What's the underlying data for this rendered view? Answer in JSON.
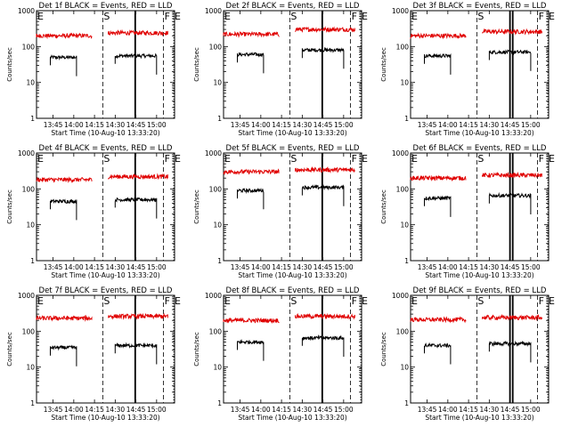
{
  "page": {
    "background": "#ffffff",
    "foreground": "#000000"
  },
  "colors": {
    "events": "#000000",
    "lld": "#e00000"
  },
  "shared": {
    "ylabel": "Counts/sec",
    "xlabel": "Start Time (10-Aug-10 13:33:20)",
    "ylim": [
      1,
      1000
    ],
    "yscale": "log",
    "ytick_labels": [
      "1",
      "10",
      "100",
      "1000"
    ],
    "xlim_minutes": [
      0,
      100
    ],
    "markers": [
      {
        "label": "E",
        "t": 0,
        "style": "dotted"
      },
      {
        "label": "S",
        "t": 48,
        "style": "dashed"
      },
      {
        "label": "F",
        "t": 92,
        "style": "dashed"
      },
      {
        "label": "E",
        "t": 102,
        "style": "dotted"
      }
    ]
  },
  "chart_data": [
    {
      "type": "line",
      "title": "Det 1f BLACK = Events, RED = LLD",
      "x_tick_labels": [
        "13:45",
        "14:00",
        "14:15",
        "14:30",
        "14:45",
        "15:00"
      ],
      "x_ticks_at": [
        12,
        27,
        42,
        57,
        72,
        87
      ],
      "solid_lines_at": [
        71.5
      ],
      "series": [
        {
          "name": "Events",
          "segments": [
            {
              "x0": 10,
              "x1": 29,
              "y": 50
            },
            {
              "x0": 57,
              "x1": 87,
              "y": 55
            }
          ]
        },
        {
          "name": "LLD",
          "segments": [
            {
              "x0": 0,
              "x1": 40,
              "y": 200
            },
            {
              "x0": 52,
              "x1": 95,
              "y": 240
            }
          ]
        }
      ]
    },
    {
      "type": "line",
      "title": "Det 2f BLACK = Events, RED = LLD",
      "x_tick_labels": [
        "13:45",
        "14:00",
        "14:15",
        "14:30",
        "14:45",
        "15:00"
      ],
      "x_ticks_at": [
        12,
        27,
        42,
        57,
        72,
        87
      ],
      "solid_lines_at": [
        71.5
      ],
      "series": [
        {
          "name": "Events",
          "segments": [
            {
              "x0": 10,
              "x1": 29,
              "y": 60
            },
            {
              "x0": 57,
              "x1": 87,
              "y": 80
            }
          ]
        },
        {
          "name": "LLD",
          "segments": [
            {
              "x0": 0,
              "x1": 40,
              "y": 220
            },
            {
              "x0": 52,
              "x1": 95,
              "y": 300
            }
          ]
        }
      ]
    },
    {
      "type": "line",
      "title": "Det 3f BLACK = Events, RED = LLD",
      "x_tick_labels": [
        "13:45",
        "14:00",
        "14:15",
        "14:30",
        "14:45",
        "15:00"
      ],
      "x_ticks_at": [
        12,
        27,
        42,
        57,
        72,
        87
      ],
      "solid_lines_at": [
        72,
        74
      ],
      "series": [
        {
          "name": "Events",
          "segments": [
            {
              "x0": 10,
              "x1": 29,
              "y": 55
            },
            {
              "x0": 57,
              "x1": 87,
              "y": 70
            }
          ]
        },
        {
          "name": "LLD",
          "segments": [
            {
              "x0": 0,
              "x1": 40,
              "y": 200
            },
            {
              "x0": 52,
              "x1": 95,
              "y": 260
            }
          ]
        }
      ]
    },
    {
      "type": "line",
      "title": "Det 4f BLACK = Events, RED = LLD",
      "x_tick_labels": [
        "13:45",
        "14:00",
        "14:15",
        "14:30",
        "14:45",
        "15:00"
      ],
      "x_ticks_at": [
        12,
        27,
        42,
        57,
        72,
        87
      ],
      "solid_lines_at": [
        71.5
      ],
      "series": [
        {
          "name": "Events",
          "segments": [
            {
              "x0": 10,
              "x1": 29,
              "y": 45
            },
            {
              "x0": 57,
              "x1": 87,
              "y": 50
            }
          ]
        },
        {
          "name": "LLD",
          "segments": [
            {
              "x0": 0,
              "x1": 40,
              "y": 180
            },
            {
              "x0": 52,
              "x1": 95,
              "y": 220
            }
          ]
        }
      ]
    },
    {
      "type": "line",
      "title": "Det 5f BLACK = Events, RED = LLD",
      "x_tick_labels": [
        "13:45",
        "14:00",
        "14:15",
        "14:30",
        "14:45",
        "15:00"
      ],
      "x_ticks_at": [
        12,
        27,
        42,
        57,
        72,
        87
      ],
      "solid_lines_at": [
        71.5
      ],
      "series": [
        {
          "name": "Events",
          "segments": [
            {
              "x0": 10,
              "x1": 29,
              "y": 90
            },
            {
              "x0": 57,
              "x1": 87,
              "y": 110
            }
          ]
        },
        {
          "name": "LLD",
          "segments": [
            {
              "x0": 0,
              "x1": 40,
              "y": 300
            },
            {
              "x0": 52,
              "x1": 95,
              "y": 340
            }
          ]
        }
      ]
    },
    {
      "type": "line",
      "title": "Det 6f BLACK = Events, RED = LLD",
      "x_tick_labels": [
        "13:45",
        "14:00",
        "14:15",
        "14:30",
        "14:45",
        "15:00"
      ],
      "x_ticks_at": [
        12,
        27,
        42,
        57,
        72,
        87
      ],
      "solid_lines_at": [
        72,
        74
      ],
      "series": [
        {
          "name": "Events",
          "segments": [
            {
              "x0": 10,
              "x1": 29,
              "y": 55
            },
            {
              "x0": 57,
              "x1": 87,
              "y": 65
            }
          ]
        },
        {
          "name": "LLD",
          "segments": [
            {
              "x0": 0,
              "x1": 40,
              "y": 200
            },
            {
              "x0": 52,
              "x1": 95,
              "y": 240
            }
          ]
        }
      ]
    },
    {
      "type": "line",
      "title": "Det 7f BLACK = Events, RED = LLD",
      "x_tick_labels": [
        "13:45",
        "14:00",
        "14:15",
        "14:30",
        "14:45",
        "15:00"
      ],
      "x_ticks_at": [
        12,
        27,
        42,
        57,
        72,
        87
      ],
      "solid_lines_at": [
        71.5
      ],
      "series": [
        {
          "name": "Events",
          "segments": [
            {
              "x0": 10,
              "x1": 29,
              "y": 35
            },
            {
              "x0": 57,
              "x1": 87,
              "y": 40
            }
          ]
        },
        {
          "name": "LLD",
          "segments": [
            {
              "x0": 0,
              "x1": 40,
              "y": 230
            },
            {
              "x0": 52,
              "x1": 95,
              "y": 260
            }
          ]
        }
      ]
    },
    {
      "type": "line",
      "title": "Det 8f BLACK = Events, RED = LLD",
      "x_tick_labels": [
        "13:45",
        "14:00",
        "14:15",
        "14:30",
        "14:45",
        "15:00"
      ],
      "x_ticks_at": [
        12,
        27,
        42,
        57,
        72,
        87
      ],
      "solid_lines_at": [
        71.5
      ],
      "series": [
        {
          "name": "Events",
          "segments": [
            {
              "x0": 10,
              "x1": 29,
              "y": 50
            },
            {
              "x0": 57,
              "x1": 87,
              "y": 65
            }
          ]
        },
        {
          "name": "LLD",
          "segments": [
            {
              "x0": 0,
              "x1": 40,
              "y": 200
            },
            {
              "x0": 52,
              "x1": 95,
              "y": 260
            }
          ]
        }
      ]
    },
    {
      "type": "line",
      "title": "Det 9f BLACK = Events, RED = LLD",
      "x_tick_labels": [
        "13:45",
        "14:00",
        "14:15",
        "14:30",
        "14:45",
        "15:00"
      ],
      "x_ticks_at": [
        12,
        27,
        42,
        57,
        72,
        87
      ],
      "solid_lines_at": [
        72,
        74
      ],
      "series": [
        {
          "name": "Events",
          "segments": [
            {
              "x0": 10,
              "x1": 29,
              "y": 40
            },
            {
              "x0": 57,
              "x1": 87,
              "y": 45
            }
          ]
        },
        {
          "name": "LLD",
          "segments": [
            {
              "x0": 0,
              "x1": 40,
              "y": 210
            },
            {
              "x0": 52,
              "x1": 95,
              "y": 240
            }
          ]
        }
      ]
    }
  ]
}
